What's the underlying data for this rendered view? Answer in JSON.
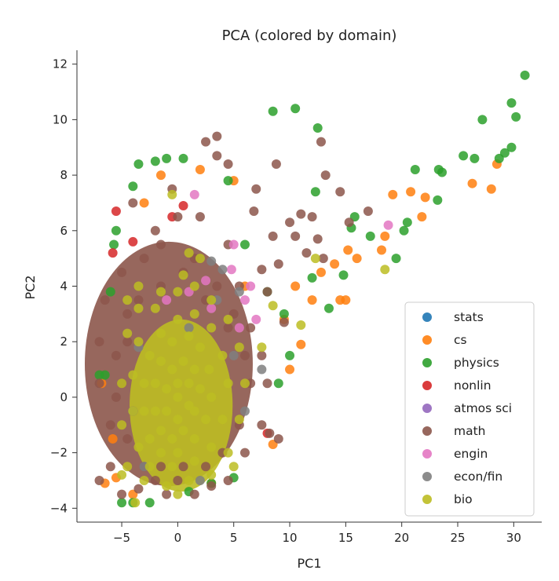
{
  "chart_data": {
    "type": "scatter",
    "title": "PCA (colored by domain)",
    "xlabel": "PC1",
    "ylabel": "PC2",
    "xlim": [
      -9,
      32.5
    ],
    "ylim": [
      -4.5,
      12.5
    ],
    "xticks": [
      -5,
      0,
      5,
      10,
      15,
      20,
      25,
      30
    ],
    "yticks": [
      -4,
      -2,
      0,
      2,
      4,
      6,
      8,
      10,
      12
    ],
    "grid": false,
    "legend_position": "lower-right",
    "series": [
      {
        "name": "stats",
        "color": "#1f77b4",
        "points": []
      },
      {
        "name": "cs",
        "color": "#ff7f0e",
        "points": [
          [
            19.2,
            7.3
          ],
          [
            20.8,
            7.4
          ],
          [
            22.1,
            7.2
          ],
          [
            26.3,
            7.7
          ],
          [
            28.0,
            7.5
          ],
          [
            28.5,
            8.4
          ],
          [
            16.0,
            5.0
          ],
          [
            15.2,
            5.3
          ],
          [
            14.0,
            4.8
          ],
          [
            18.5,
            5.8
          ],
          [
            18.2,
            5.3
          ],
          [
            21.8,
            6.5
          ],
          [
            10.5,
            4.0
          ],
          [
            12.0,
            3.5
          ],
          [
            14.5,
            3.5
          ],
          [
            15.0,
            3.5
          ],
          [
            12.8,
            4.5
          ],
          [
            6.0,
            4.0
          ],
          [
            5.0,
            7.8
          ],
          [
            2.0,
            8.2
          ],
          [
            -1.5,
            8.0
          ],
          [
            -3.0,
            7.0
          ],
          [
            -5.8,
            -1.5
          ],
          [
            -6.5,
            -3.1
          ],
          [
            -5.5,
            -2.9
          ],
          [
            -4.0,
            -3.5
          ],
          [
            8.5,
            -1.7
          ],
          [
            10.0,
            1.0
          ],
          [
            11.0,
            1.9
          ],
          [
            9.5,
            2.8
          ],
          [
            -6.8,
            0.5
          ],
          [
            3.0,
            -3.1
          ]
        ]
      },
      {
        "name": "physics",
        "color": "#2ca02c",
        "points": [
          [
            31.0,
            11.6
          ],
          [
            29.8,
            10.6
          ],
          [
            30.2,
            10.1
          ],
          [
            27.2,
            10.0
          ],
          [
            29.2,
            8.8
          ],
          [
            29.8,
            9.0
          ],
          [
            28.7,
            8.6
          ],
          [
            26.5,
            8.6
          ],
          [
            25.5,
            8.7
          ],
          [
            23.3,
            8.2
          ],
          [
            23.6,
            8.1
          ],
          [
            21.2,
            8.2
          ],
          [
            23.2,
            7.1
          ],
          [
            20.5,
            6.3
          ],
          [
            20.2,
            6.0
          ],
          [
            19.5,
            5.0
          ],
          [
            17.2,
            5.8
          ],
          [
            15.8,
            6.5
          ],
          [
            15.5,
            6.1
          ],
          [
            14.8,
            4.4
          ],
          [
            13.5,
            3.2
          ],
          [
            12.0,
            4.3
          ],
          [
            12.5,
            9.7
          ],
          [
            10.5,
            10.4
          ],
          [
            8.5,
            10.3
          ],
          [
            12.3,
            7.4
          ],
          [
            -3.5,
            8.4
          ],
          [
            -2.0,
            8.5
          ],
          [
            -1.0,
            8.6
          ],
          [
            0.5,
            8.6
          ],
          [
            4.5,
            7.8
          ],
          [
            6.0,
            5.5
          ],
          [
            8.0,
            3.8
          ],
          [
            9.5,
            3.0
          ],
          [
            10.0,
            1.5
          ],
          [
            9.0,
            0.5
          ],
          [
            -6.5,
            0.8
          ],
          [
            -7.0,
            0.8
          ],
          [
            -5.0,
            -3.8
          ],
          [
            -4.0,
            -3.8
          ],
          [
            -2.5,
            -3.8
          ],
          [
            1.0,
            -3.4
          ],
          [
            5.0,
            -2.9
          ],
          [
            3.0,
            -3.1
          ],
          [
            -6.0,
            3.8
          ],
          [
            -4.0,
            7.6
          ],
          [
            -5.5,
            6.0
          ],
          [
            -5.7,
            5.5
          ]
        ]
      },
      {
        "name": "nonlin",
        "color": "#d62728",
        "points": [
          [
            -5.5,
            6.7
          ],
          [
            -5.8,
            5.2
          ],
          [
            0.5,
            6.9
          ],
          [
            -0.5,
            6.5
          ],
          [
            8.0,
            -1.3
          ],
          [
            -4.0,
            5.6
          ]
        ]
      },
      {
        "name": "atmos sci",
        "color": "#9467bd",
        "points": []
      },
      {
        "name": "math",
        "color": "#8c564b",
        "points": [
          [
            3.5,
            9.4
          ],
          [
            2.5,
            9.2
          ],
          [
            3.5,
            8.7
          ],
          [
            4.5,
            8.4
          ],
          [
            8.8,
            8.4
          ],
          [
            12.8,
            9.2
          ],
          [
            13.2,
            8.0
          ],
          [
            14.5,
            7.4
          ],
          [
            17.0,
            6.7
          ],
          [
            15.3,
            6.3
          ],
          [
            11.0,
            6.6
          ],
          [
            10.0,
            6.3
          ],
          [
            12.0,
            6.5
          ],
          [
            7.0,
            7.5
          ],
          [
            6.8,
            6.7
          ],
          [
            8.5,
            5.8
          ],
          [
            10.5,
            5.8
          ],
          [
            12.5,
            5.7
          ],
          [
            13.0,
            5.0
          ],
          [
            11.5,
            5.2
          ],
          [
            9.0,
            4.8
          ],
          [
            7.5,
            4.6
          ],
          [
            8.0,
            3.8
          ],
          [
            9.5,
            2.7
          ],
          [
            4.5,
            5.5
          ],
          [
            2.0,
            6.5
          ],
          [
            -0.5,
            7.5
          ],
          [
            -4.0,
            7.0
          ],
          [
            -2.0,
            6.0
          ],
          [
            -5.0,
            4.5
          ],
          [
            -6.5,
            3.5
          ],
          [
            -7.0,
            2.0
          ],
          [
            -7.0,
            0.5
          ],
          [
            -6.0,
            -1.0
          ],
          [
            -6.0,
            -2.5
          ],
          [
            -7.0,
            -3.0
          ],
          [
            -5.0,
            -3.5
          ],
          [
            -3.5,
            -3.3
          ],
          [
            -2.0,
            -3.0
          ],
          [
            0.0,
            -3.0
          ],
          [
            1.5,
            -3.5
          ],
          [
            3.0,
            -3.2
          ],
          [
            4.5,
            -3.0
          ],
          [
            6.0,
            -2.0
          ],
          [
            7.5,
            -1.0
          ],
          [
            8.0,
            0.5
          ],
          [
            7.5,
            1.5
          ],
          [
            6.5,
            2.5
          ],
          [
            5.0,
            3.0
          ],
          [
            3.5,
            4.0
          ],
          [
            1.5,
            5.0
          ],
          [
            0.0,
            6.5
          ],
          [
            -1.5,
            5.5
          ],
          [
            -3.0,
            5.0
          ],
          [
            -4.5,
            3.0
          ],
          [
            -5.5,
            1.5
          ],
          [
            -5.5,
            0.0
          ],
          [
            -4.5,
            -1.5
          ],
          [
            -3.0,
            -2.5
          ],
          [
            -1.5,
            -2.5
          ],
          [
            0.5,
            -2.5
          ],
          [
            2.5,
            -2.5
          ],
          [
            4.0,
            -2.0
          ],
          [
            5.5,
            -1.0
          ],
          [
            6.5,
            0.5
          ],
          [
            6.0,
            1.5
          ],
          [
            4.5,
            2.5
          ],
          [
            2.5,
            3.5
          ],
          [
            0.5,
            4.5
          ],
          [
            -1.5,
            4.0
          ],
          [
            -3.5,
            3.5
          ],
          [
            -4.5,
            2.0
          ],
          [
            -5.0,
            0.5
          ],
          [
            -4.0,
            -0.5
          ],
          [
            9.0,
            -1.5
          ],
          [
            8.2,
            -1.3
          ],
          [
            -1.0,
            -3.5
          ],
          [
            5.5,
            4.0
          ]
        ]
      },
      {
        "name": "engin",
        "color": "#e377c2",
        "points": [
          [
            18.8,
            6.2
          ],
          [
            1.5,
            7.3
          ],
          [
            5.0,
            5.5
          ],
          [
            4.8,
            4.6
          ],
          [
            6.5,
            4.0
          ],
          [
            7.0,
            2.8
          ],
          [
            3.0,
            3.2
          ],
          [
            1.0,
            3.8
          ],
          [
            2.5,
            4.2
          ],
          [
            6.0,
            3.5
          ],
          [
            5.5,
            2.5
          ],
          [
            -1.0,
            3.5
          ]
        ]
      },
      {
        "name": "econ/fin",
        "color": "#7f7f7f",
        "points": [
          [
            3.0,
            4.9
          ],
          [
            4.0,
            4.6
          ],
          [
            5.5,
            3.8
          ],
          [
            3.5,
            3.5
          ],
          [
            1.0,
            2.5
          ],
          [
            -3.5,
            1.8
          ],
          [
            -4.0,
            -0.5
          ],
          [
            6.0,
            -0.5
          ],
          [
            -3.0,
            -2.5
          ],
          [
            2.0,
            -3.0
          ],
          [
            7.5,
            1.0
          ],
          [
            5.0,
            1.5
          ]
        ]
      },
      {
        "name": "bio",
        "color": "#bcbd22",
        "points": [
          [
            18.5,
            4.6
          ],
          [
            12.3,
            5.0
          ],
          [
            11.0,
            2.6
          ],
          [
            7.5,
            1.8
          ],
          [
            8.5,
            3.3
          ],
          [
            -3.8,
            -3.8
          ],
          [
            -0.5,
            7.3
          ],
          [
            1.0,
            5.2
          ],
          [
            2.0,
            5.0
          ],
          [
            0.5,
            4.4
          ],
          [
            -1.5,
            3.8
          ],
          [
            -3.5,
            3.2
          ],
          [
            -4.5,
            2.3
          ],
          [
            -5.0,
            0.5
          ],
          [
            -5.0,
            -1.0
          ],
          [
            -4.5,
            -2.5
          ],
          [
            -3.0,
            -3.0
          ],
          [
            -1.0,
            -3.2
          ],
          [
            1.0,
            -3.0
          ],
          [
            3.0,
            -2.8
          ],
          [
            4.5,
            -2.0
          ],
          [
            5.5,
            -0.8
          ],
          [
            6.0,
            0.5
          ],
          [
            5.5,
            1.8
          ],
          [
            4.5,
            2.8
          ],
          [
            3.0,
            3.5
          ],
          [
            1.5,
            4.0
          ],
          [
            0.0,
            3.8
          ],
          [
            -2.0,
            3.2
          ],
          [
            -3.5,
            2.0
          ],
          [
            -4.0,
            0.8
          ],
          [
            -4.0,
            -0.5
          ],
          [
            -3.5,
            -1.8
          ],
          [
            -2.5,
            -2.5
          ],
          [
            -0.5,
            -2.5
          ],
          [
            1.5,
            -2.3
          ],
          [
            3.0,
            -1.8
          ],
          [
            4.0,
            -0.8
          ],
          [
            4.5,
            0.5
          ],
          [
            4.0,
            1.5
          ],
          [
            3.0,
            2.5
          ],
          [
            1.5,
            3.0
          ],
          [
            0.0,
            2.8
          ],
          [
            -1.5,
            2.3
          ],
          [
            -2.5,
            1.5
          ],
          [
            -3.0,
            0.5
          ],
          [
            -3.0,
            -0.5
          ],
          [
            -2.5,
            -1.5
          ],
          [
            -1.5,
            -2.0
          ],
          [
            0.0,
            -2.0
          ],
          [
            1.5,
            -1.5
          ],
          [
            2.5,
            -0.8
          ],
          [
            3.0,
            0.0
          ],
          [
            2.8,
            1.0
          ],
          [
            2.0,
            1.8
          ],
          [
            1.0,
            2.2
          ],
          [
            -0.5,
            2.0
          ],
          [
            -1.5,
            1.3
          ],
          [
            -2.0,
            0.5
          ],
          [
            -2.0,
            -0.5
          ],
          [
            -1.5,
            -1.2
          ],
          [
            -0.5,
            -1.5
          ],
          [
            0.5,
            -1.2
          ],
          [
            1.5,
            -0.5
          ],
          [
            2.0,
            0.3
          ],
          [
            1.5,
            1.0
          ],
          [
            0.5,
            1.3
          ],
          [
            -0.5,
            1.0
          ],
          [
            -1.0,
            0.3
          ],
          [
            -1.0,
            -0.5
          ],
          [
            0.0,
            -0.8
          ],
          [
            1.0,
            -0.3
          ],
          [
            1.0,
            0.5
          ],
          [
            0.0,
            0.5
          ],
          [
            0.0,
            0.0
          ],
          [
            -4.5,
            3.5
          ],
          [
            -3.5,
            4.0
          ],
          [
            -5.0,
            -2.8
          ],
          [
            5.0,
            -2.5
          ],
          [
            0.0,
            -3.5
          ]
        ]
      }
    ]
  }
}
